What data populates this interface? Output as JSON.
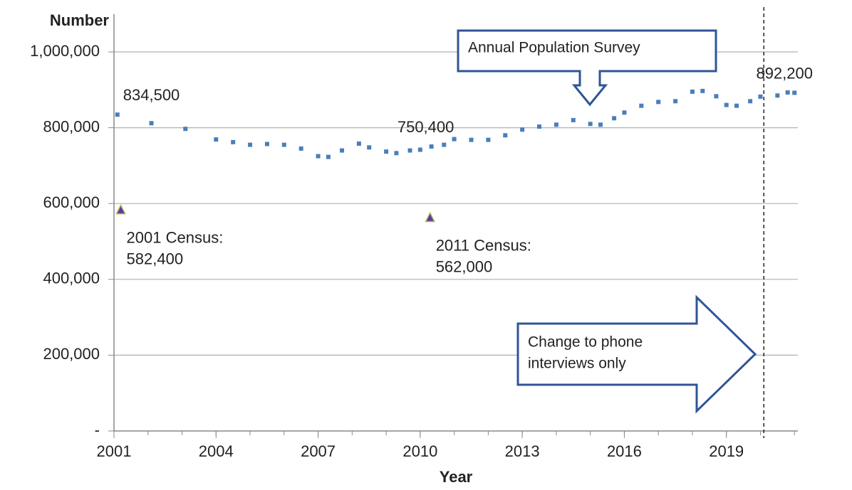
{
  "chart_data": {
    "type": "scatter",
    "y_label": "Number",
    "x_label": "Year",
    "xlim": [
      2001,
      2021.1
    ],
    "ylim": [
      0,
      1100000
    ],
    "xticks": [
      2001,
      2004,
      2007,
      2010,
      2013,
      2016,
      2019
    ],
    "yticks": [
      {
        "value": 0,
        "label": "-"
      },
      {
        "value": 200000,
        "label": "200,000"
      },
      {
        "value": 400000,
        "label": "400,000"
      },
      {
        "value": 600000,
        "label": "600,000"
      },
      {
        "value": 800000,
        "label": "800,000"
      },
      {
        "value": 1000000,
        "label": "1,000,000"
      }
    ],
    "grid": true,
    "series": [
      {
        "color": "#4a7ebb",
        "x": [
          2001.1,
          2002.1,
          2003.1,
          2004.0,
          2004.5,
          2005.0,
          2005.5,
          2006.0,
          2006.5,
          2007.0,
          2007.3,
          2007.7,
          2008.2,
          2008.5,
          2009.0,
          2009.3,
          2009.7,
          2010.0,
          2010.33,
          2010.7,
          2011.0,
          2011.5,
          2012.0,
          2012.5,
          2013.0,
          2013.5,
          2014.0,
          2014.5,
          2015.0,
          2015.3,
          2015.7,
          2016.0,
          2016.5,
          2017.0,
          2017.5,
          2018.0,
          2018.3,
          2018.7,
          2019.0,
          2019.3,
          2019.7,
          2020.0,
          2020.5,
          2020.8,
          2021.0
        ],
        "values": [
          834500,
          812000,
          797000,
          769000,
          762000,
          755000,
          757000,
          755000,
          745000,
          725000,
          723000,
          740000,
          758000,
          748000,
          737000,
          733000,
          740000,
          742000,
          750400,
          755000,
          770000,
          768000,
          768000,
          780000,
          795000,
          803000,
          808000,
          820000,
          810000,
          808000,
          825000,
          840000,
          858000,
          868000,
          870000,
          895000,
          897000,
          883000,
          860000,
          858000,
          870000,
          882000,
          885000,
          893000,
          892200
        ],
        "value_labels": [
          "834,500",
          null,
          null,
          null,
          null,
          null,
          null,
          null,
          null,
          null,
          null,
          null,
          null,
          null,
          null,
          null,
          null,
          null,
          "750,400",
          null,
          null,
          null,
          null,
          null,
          null,
          null,
          null,
          null,
          null,
          null,
          null,
          null,
          null,
          null,
          null,
          null,
          null,
          null,
          null,
          null,
          null,
          null,
          null,
          null,
          "892,200"
        ]
      },
      {
        "color": "#7030a0",
        "edge": "#9bbb59",
        "x": [
          2001.2,
          2010.29
        ],
        "values": [
          582400,
          562000
        ],
        "value_labels": [
          [
            "2001 Census:",
            "582,400"
          ],
          [
            "2011 Census:",
            "562,000"
          ]
        ]
      }
    ],
    "vline_x": 2020.1,
    "annotations": {
      "survey": "Annual Population Survey",
      "phone": [
        "Change to phone",
        "interviews only"
      ]
    }
  }
}
